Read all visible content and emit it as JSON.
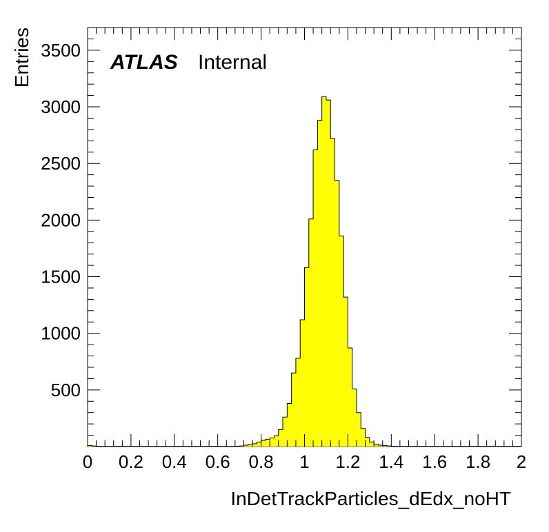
{
  "chart_data": {
    "type": "bar",
    "histogram": true,
    "xlabel": "InDetTrackParticles_dEdx_noHT",
    "ylabel": "Entries",
    "xlim": [
      0,
      2
    ],
    "ylim": [
      0,
      3700
    ],
    "x_ticks": [
      "0",
      "0.2",
      "0.4",
      "0.6",
      "0.8",
      "1",
      "1.2",
      "1.4",
      "1.6",
      "1.8",
      "2"
    ],
    "y_ticks": [
      "500",
      "1000",
      "1500",
      "2000",
      "2500",
      "3000",
      "3500"
    ],
    "label_main": "ATLAS",
    "label_sub": "Internal",
    "fill_color": "#ffff00",
    "line_color": "#000000",
    "bin_width": 0.02,
    "x_start": 0.0,
    "values": [
      10,
      5,
      3,
      2,
      2,
      2,
      2,
      2,
      2,
      2,
      2,
      2,
      2,
      2,
      2,
      2,
      2,
      2,
      2,
      2,
      2,
      2,
      2,
      2,
      2,
      2,
      2,
      2,
      2,
      2,
      2,
      2,
      2,
      2,
      3,
      5,
      12,
      18,
      25,
      40,
      55,
      65,
      75,
      95,
      150,
      260,
      380,
      650,
      780,
      1120,
      1580,
      2010,
      2620,
      2880,
      3090,
      3060,
      2720,
      2350,
      1860,
      1320,
      870,
      510,
      300,
      160,
      80,
      40,
      20,
      12,
      8,
      5,
      3,
      2,
      2,
      2,
      2,
      2,
      2,
      2,
      2,
      2,
      2,
      2,
      2,
      2,
      2,
      2,
      2,
      2,
      2,
      2,
      2,
      2,
      2,
      2,
      2,
      2,
      2,
      2,
      2,
      2
    ]
  }
}
